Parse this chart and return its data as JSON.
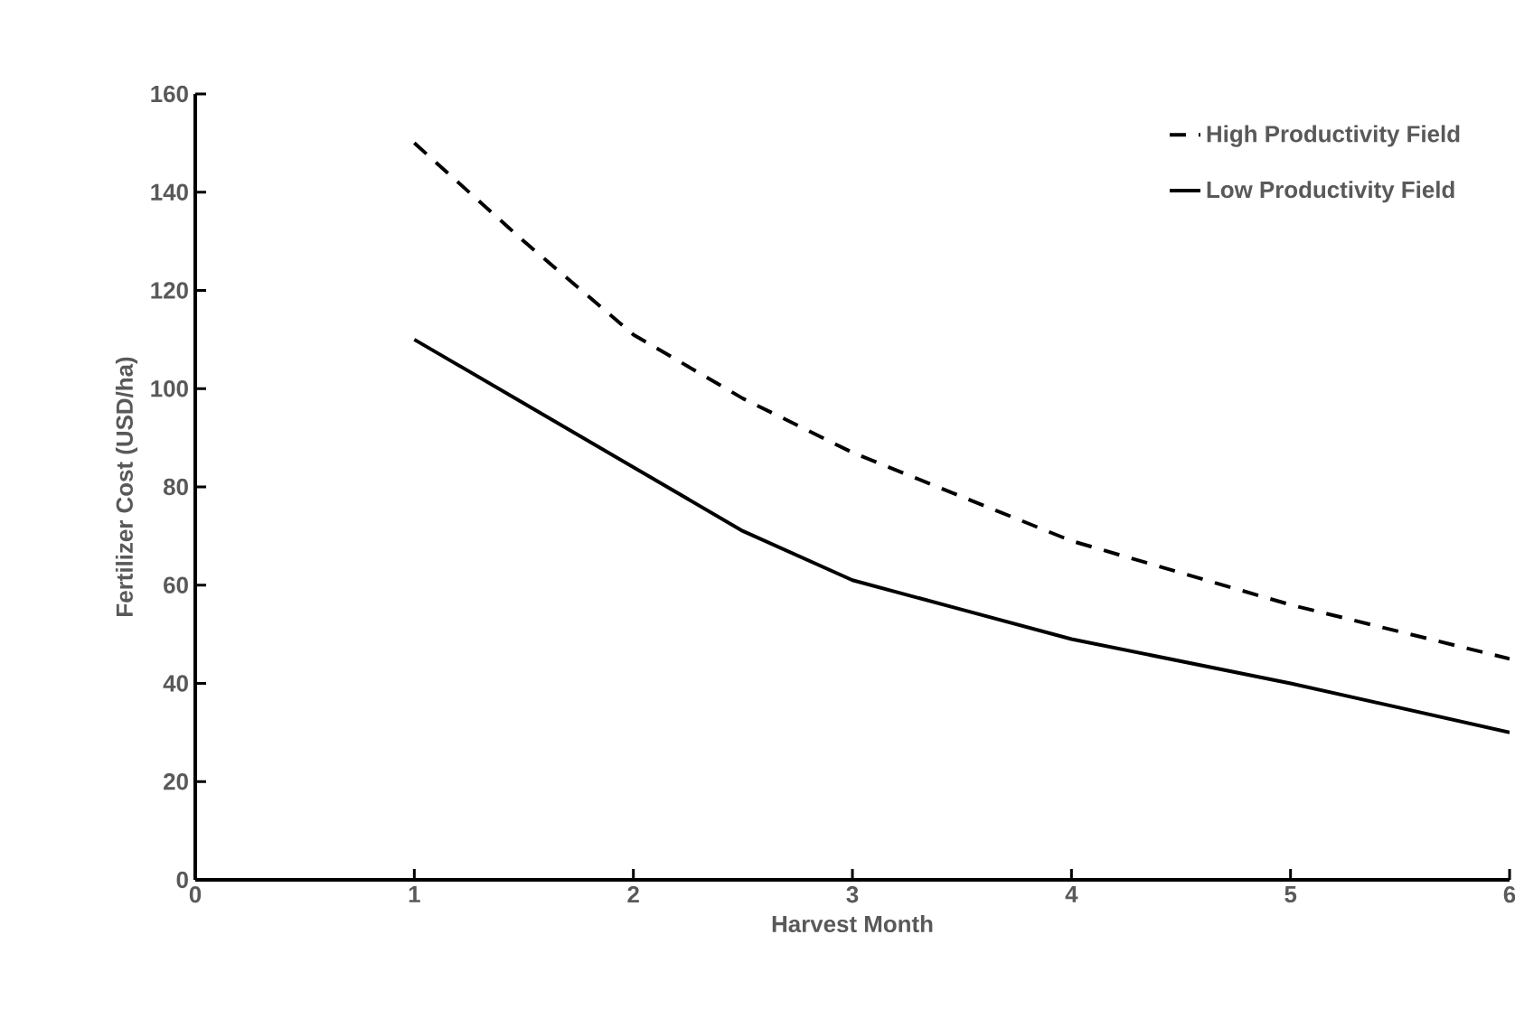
{
  "chart_data": {
    "type": "line",
    "xlabel": "Harvest Month",
    "ylabel": "Fertilizer Cost (USD/ha)",
    "x": [
      1,
      1.5,
      2,
      2.5,
      3,
      3.5,
      4,
      5,
      6
    ],
    "series": [
      {
        "name": "High Productivity Field",
        "color": "#000000",
        "line_style": "dashed",
        "values": [
          150,
          130,
          111,
          98,
          87,
          78,
          69,
          56,
          45
        ]
      },
      {
        "name": "Low Productivity Field",
        "color": "#000000",
        "line_style": "solid",
        "values": [
          110,
          97,
          84,
          71,
          61,
          55,
          49,
          40,
          30
        ]
      }
    ],
    "xlim": [
      0,
      6
    ],
    "xticks": [
      0,
      1,
      2,
      3,
      4,
      5,
      6
    ],
    "ylim": [
      0,
      160
    ],
    "yticks": [
      0,
      20,
      40,
      60,
      80,
      100,
      120,
      140,
      160
    ],
    "grid": false,
    "legend": "top right",
    "marker": "none"
  }
}
